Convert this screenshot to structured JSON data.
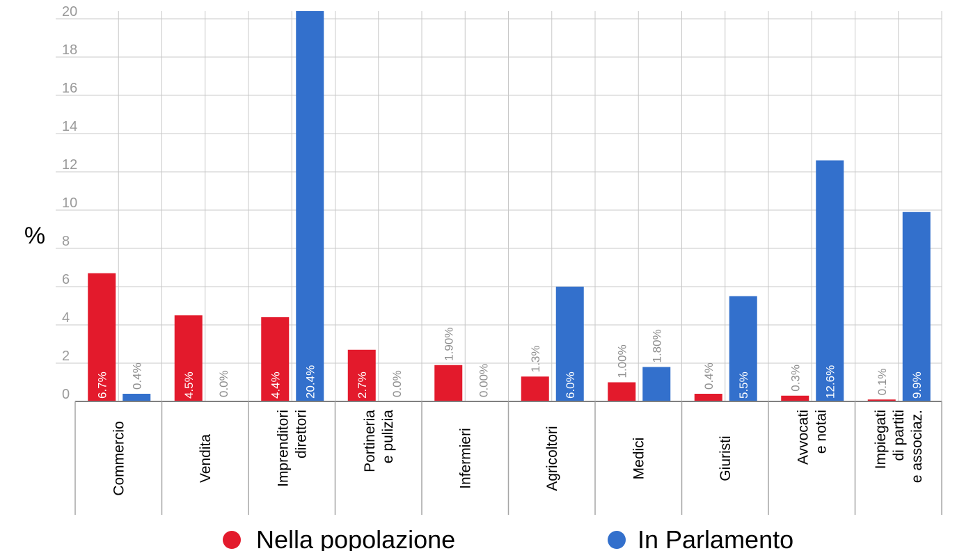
{
  "chart_data": {
    "type": "bar",
    "ylabel": "%",
    "ylim": [
      0,
      20
    ],
    "yticks": [
      0,
      2,
      4,
      6,
      8,
      10,
      12,
      14,
      16,
      18,
      20
    ],
    "grid": true,
    "legend_position": "bottom",
    "categories": [
      [
        "Commercio"
      ],
      [
        "Vendita"
      ],
      [
        "Imprenditori",
        "direttori"
      ],
      [
        "Portineria",
        "e pulizia"
      ],
      [
        "Infermieri"
      ],
      [
        "Agricoltori"
      ],
      [
        "Medici"
      ],
      [
        "Giuristi"
      ],
      [
        "Avvocati",
        "e notai"
      ],
      [
        "Impiegati",
        "di partiti",
        "e associaz."
      ]
    ],
    "series": [
      {
        "name": "Nella popolazione",
        "color": "#e31a2c",
        "values": [
          6.7,
          4.5,
          4.4,
          2.7,
          1.9,
          1.3,
          1.0,
          0.4,
          0.3,
          0.1
        ],
        "labels": [
          "6.7%",
          "4.5%",
          "4.4%",
          "2.7%",
          "1.90%",
          "1.3%",
          "1.00%",
          "0.4%",
          "0.3%",
          "0.1%"
        ]
      },
      {
        "name": "In Parlamento",
        "color": "#3370cc",
        "values": [
          0.4,
          0.0,
          20.4,
          0.0,
          0.0,
          6.0,
          1.8,
          5.5,
          12.6,
          9.9
        ],
        "labels": [
          "0.4%",
          "0.0%",
          "20.4%",
          "0.0%",
          "0.00%",
          "6.0%",
          "1.80%",
          "5.5%",
          "12.6%",
          "9.9%"
        ]
      }
    ]
  }
}
